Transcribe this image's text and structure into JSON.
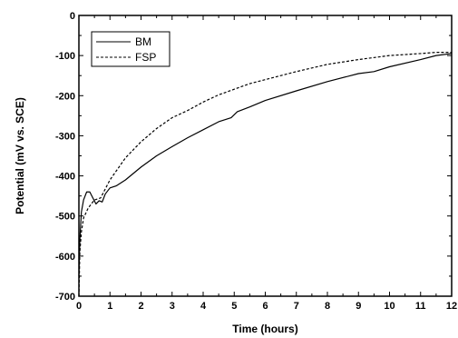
{
  "chart_data": {
    "type": "line",
    "title": "",
    "xlabel": "Time (hours)",
    "ylabel": "Potential (mV vs. SCE)",
    "xlim": [
      0,
      12
    ],
    "ylim": [
      -700,
      0
    ],
    "xticks": [
      0,
      1,
      2,
      3,
      4,
      5,
      6,
      7,
      8,
      9,
      10,
      11,
      12
    ],
    "yticks": [
      0,
      -100,
      -200,
      -300,
      -400,
      -500,
      -600,
      -700
    ],
    "grid": false,
    "legend_position": "top-left",
    "series": [
      {
        "name": "BM",
        "line_style": "solid",
        "color": "#000000",
        "x": [
          0,
          0.03,
          0.08,
          0.15,
          0.25,
          0.35,
          0.45,
          0.55,
          0.65,
          0.75,
          0.85,
          1.0,
          1.2,
          1.5,
          2.0,
          2.5,
          3.0,
          3.5,
          4.0,
          4.5,
          4.9,
          5.1,
          5.5,
          6.0,
          7.0,
          8.0,
          9.0,
          9.5,
          10.0,
          11.0,
          11.5,
          12.0
        ],
        "y": [
          -650,
          -560,
          -490,
          -460,
          -440,
          -440,
          -455,
          -470,
          -462,
          -465,
          -445,
          -430,
          -425,
          -410,
          -378,
          -350,
          -327,
          -305,
          -285,
          -265,
          -255,
          -240,
          -228,
          -212,
          -188,
          -165,
          -145,
          -140,
          -128,
          -110,
          -100,
          -95
        ]
      },
      {
        "name": "FSP",
        "line_style": "dashed",
        "color": "#000000",
        "x": [
          0,
          0.03,
          0.08,
          0.15,
          0.3,
          0.5,
          0.7,
          1.0,
          1.5,
          2.0,
          2.5,
          3.0,
          3.5,
          4.0,
          4.5,
          5.0,
          5.5,
          6.0,
          7.0,
          8.0,
          9.0,
          10.0,
          11.0,
          11.5,
          12.0
        ],
        "y": [
          -700,
          -590,
          -540,
          -505,
          -480,
          -460,
          -455,
          -410,
          -355,
          -315,
          -282,
          -255,
          -237,
          -216,
          -198,
          -184,
          -170,
          -160,
          -140,
          -122,
          -110,
          -100,
          -95,
          -92,
          -92
        ]
      }
    ]
  }
}
